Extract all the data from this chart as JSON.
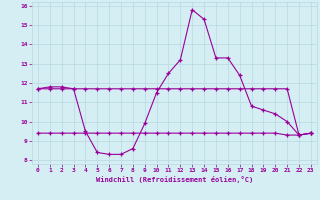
{
  "xlabel": "Windchill (Refroidissement éolien,°C)",
  "ylabel": "",
  "x": [
    0,
    1,
    2,
    3,
    4,
    5,
    6,
    7,
    8,
    9,
    10,
    11,
    12,
    13,
    14,
    15,
    16,
    17,
    18,
    19,
    20,
    21,
    22,
    23
  ],
  "y_main": [
    11.7,
    11.8,
    11.8,
    11.7,
    9.5,
    8.4,
    8.3,
    8.3,
    8.6,
    9.9,
    11.5,
    12.5,
    13.2,
    15.8,
    15.3,
    13.3,
    13.3,
    12.4,
    10.8,
    10.6,
    10.4,
    10.0,
    9.3,
    9.4
  ],
  "y_upper": [
    11.7,
    11.7,
    11.7,
    11.7,
    11.7,
    11.7,
    11.7,
    11.7,
    11.7,
    11.7,
    11.7,
    11.7,
    11.7,
    11.7,
    11.7,
    11.7,
    11.7,
    11.7,
    11.7,
    11.7,
    11.7,
    11.7,
    9.3,
    9.4
  ],
  "y_lower": [
    9.4,
    9.4,
    9.4,
    9.4,
    9.4,
    9.4,
    9.4,
    9.4,
    9.4,
    9.4,
    9.4,
    9.4,
    9.4,
    9.4,
    9.4,
    9.4,
    9.4,
    9.4,
    9.4,
    9.4,
    9.4,
    9.3,
    9.3,
    9.4
  ],
  "line_color": "#990099",
  "bg_color": "#d4eef4",
  "grid_color": "#b8d8e0",
  "ylim": [
    7.8,
    16.2
  ],
  "xlim": [
    -0.5,
    23.5
  ],
  "yticks": [
    8,
    9,
    10,
    11,
    12,
    13,
    14,
    15,
    16
  ],
  "xticks": [
    0,
    1,
    2,
    3,
    4,
    5,
    6,
    7,
    8,
    9,
    10,
    11,
    12,
    13,
    14,
    15,
    16,
    17,
    18,
    19,
    20,
    21,
    22,
    23
  ],
  "marker": "+"
}
